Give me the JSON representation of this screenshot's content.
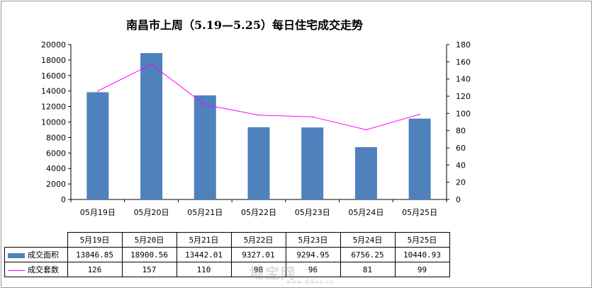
{
  "chart_data": {
    "type": "bar",
    "title": "南昌市上周（5.19—5.25）每日住宅成交走势",
    "categories": [
      "05月19日",
      "05月20日",
      "05月21日",
      "05月22日",
      "05月23日",
      "05月24日",
      "05月25日"
    ],
    "series": [
      {
        "name": "成交面积",
        "type": "bar",
        "axis": "left",
        "color": "#4f81bd",
        "values": [
          13846.85,
          18900.56,
          13442.01,
          9327.01,
          9294.95,
          6756.25,
          10440.93
        ]
      },
      {
        "name": "成交套数",
        "type": "line",
        "axis": "right",
        "color": "#ff00ff",
        "values": [
          126,
          157,
          110,
          98,
          96,
          81,
          99
        ]
      }
    ],
    "ylim": [
      0,
      20000
    ],
    "y_ticks": [
      "0",
      "2000",
      "4000",
      "6000",
      "8000",
      "10000",
      "12000",
      "14000",
      "16000",
      "18000",
      "20000"
    ],
    "y2lim": [
      0,
      180
    ],
    "y2_ticks": [
      "0",
      "20",
      "40",
      "60",
      "80",
      "100",
      "120",
      "140",
      "160",
      "180"
    ],
    "grid": false,
    "legend": "data table below chart",
    "table": {
      "columns": [
        "5月19日",
        "5月20日",
        "5月21日",
        "5月22日",
        "5月23日",
        "5月24日",
        "5月25日"
      ],
      "rows": [
        {
          "label": "成交面积",
          "cells": [
            "13846.85",
            "18900.56",
            "13442.01",
            "9327.01",
            "9294.95",
            "6756.25",
            "10440.93"
          ]
        },
        {
          "label": "成交套数",
          "cells": [
            "126",
            "157",
            "110",
            "98",
            "96",
            "81",
            "99"
          ]
        }
      ]
    }
  },
  "watermark": {
    "text": "地宝网",
    "url": "www.dibao.cn"
  }
}
